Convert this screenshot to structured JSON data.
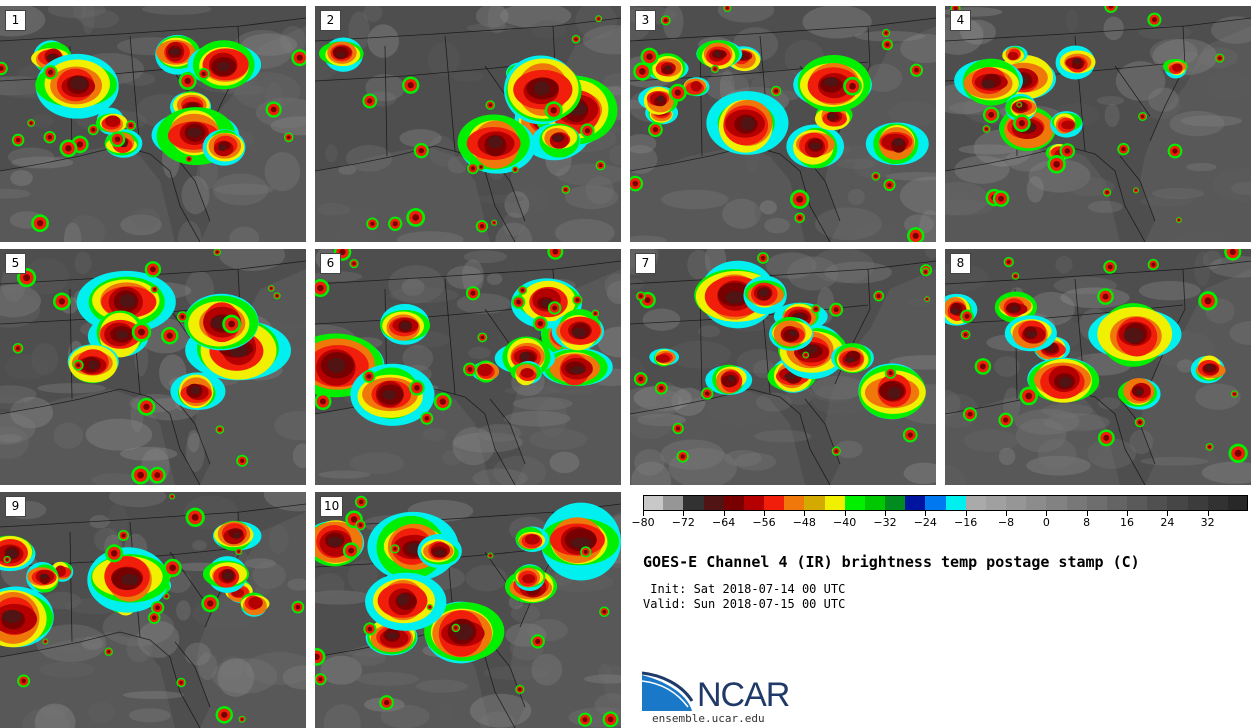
{
  "title": "GOES-E Channel 4 (IR) brightness temp postage stamp (C)",
  "init_line": " Init: Sat 2018-07-14 00 UTC",
  "valid_line": "Valid: Sun 2018-07-15 00 UTC",
  "panels": [
    {
      "label": "1"
    },
    {
      "label": "2"
    },
    {
      "label": "3"
    },
    {
      "label": "4"
    },
    {
      "label": "5"
    },
    {
      "label": "6"
    },
    {
      "label": "7"
    },
    {
      "label": "8"
    },
    {
      "label": "9"
    },
    {
      "label": "10"
    }
  ],
  "colorbar": {
    "colors": [
      "#c8c8c8",
      "#969696",
      "#323232",
      "#501414",
      "#780000",
      "#b40000",
      "#f01e0a",
      "#f0780a",
      "#d2aa00",
      "#f0f000",
      "#00f000",
      "#00c800",
      "#008c1e",
      "#0014a0",
      "#0078f0",
      "#00f0f0",
      "#aaaaaa",
      "#a0a0a0",
      "#969696",
      "#8c8c8c",
      "#828282",
      "#787878",
      "#6e6e6e",
      "#646464",
      "#5a5a5a",
      "#505050",
      "#464646",
      "#3c3c3c",
      "#323232",
      "#282828"
    ],
    "min": -80,
    "max": 40,
    "tick_labels": [
      "-80",
      "-72",
      "-64",
      "-56",
      "-48",
      "-40",
      "-32",
      "-24",
      "-16",
      "-8",
      "0",
      "8",
      "16",
      "24",
      "32"
    ],
    "tick_values": [
      -80,
      -72,
      -64,
      -56,
      -48,
      -40,
      -32,
      -24,
      -16,
      -8,
      0,
      8,
      16,
      24,
      32
    ]
  },
  "logo": {
    "text": "NCAR",
    "website": "ensemble.ucar.edu"
  }
}
